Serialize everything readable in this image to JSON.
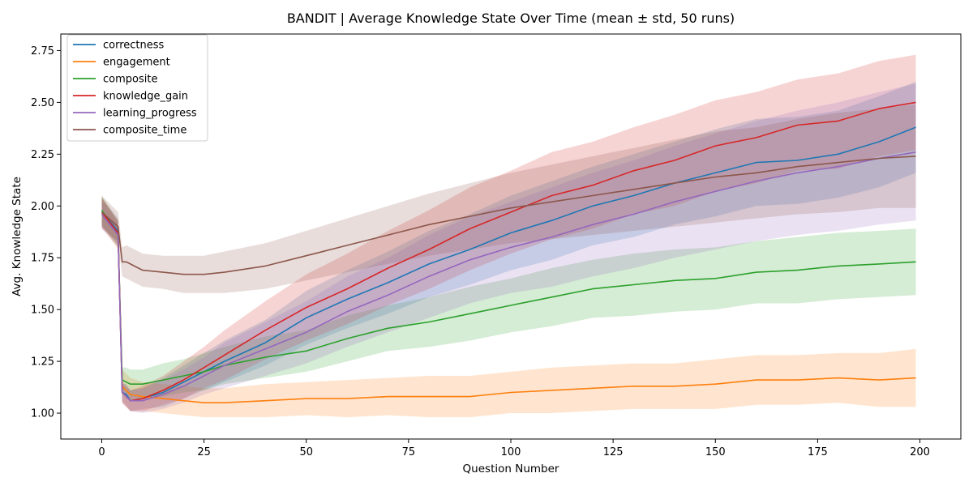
{
  "chart_data": {
    "type": "line",
    "title": "BANDIT | Average Knowledge State Over Time (mean ± std, 50 runs)",
    "xlabel": "Question Number",
    "ylabel": "Avg. Knowledge State",
    "xlim": [
      -10,
      210
    ],
    "ylim": [
      0.875,
      2.83
    ],
    "xticks": [
      0,
      25,
      50,
      75,
      100,
      125,
      150,
      175,
      200
    ],
    "yticks": [
      1.0,
      1.25,
      1.5,
      1.75,
      2.0,
      2.25,
      2.5,
      2.75
    ],
    "ytick_labels": [
      "1.00",
      "1.25",
      "1.50",
      "1.75",
      "2.00",
      "2.25",
      "2.50",
      "2.75"
    ],
    "grid": false,
    "legend_position": "top-left",
    "band": "mean ± std",
    "x": [
      0,
      4,
      5,
      6,
      7,
      10,
      15,
      20,
      25,
      30,
      40,
      50,
      60,
      70,
      80,
      90,
      100,
      110,
      120,
      130,
      140,
      150,
      160,
      170,
      180,
      190,
      199
    ],
    "series": [
      {
        "name": "correctness",
        "color": "#1f77b4",
        "values": [
          1.97,
          1.88,
          1.1,
          1.09,
          1.06,
          1.07,
          1.1,
          1.15,
          1.2,
          1.25,
          1.34,
          1.46,
          1.55,
          1.63,
          1.72,
          1.79,
          1.87,
          1.93,
          2.0,
          2.05,
          2.11,
          2.16,
          2.21,
          2.22,
          2.25,
          2.31,
          2.38
        ],
        "std": [
          0.07,
          0.06,
          0.04,
          0.05,
          0.05,
          0.05,
          0.07,
          0.08,
          0.09,
          0.1,
          0.11,
          0.13,
          0.14,
          0.15,
          0.16,
          0.17,
          0.18,
          0.19,
          0.19,
          0.2,
          0.2,
          0.21,
          0.21,
          0.21,
          0.21,
          0.22,
          0.22
        ]
      },
      {
        "name": "engagement",
        "color": "#ff7f0e",
        "values": [
          1.97,
          1.86,
          1.13,
          1.11,
          1.09,
          1.08,
          1.07,
          1.06,
          1.05,
          1.05,
          1.06,
          1.07,
          1.07,
          1.08,
          1.08,
          1.08,
          1.1,
          1.11,
          1.12,
          1.13,
          1.13,
          1.14,
          1.16,
          1.16,
          1.17,
          1.16,
          1.17
        ],
        "std": [
          0.07,
          0.07,
          0.08,
          0.08,
          0.08,
          0.07,
          0.07,
          0.07,
          0.07,
          0.07,
          0.08,
          0.08,
          0.09,
          0.09,
          0.1,
          0.1,
          0.1,
          0.11,
          0.11,
          0.11,
          0.11,
          0.12,
          0.12,
          0.12,
          0.12,
          0.13,
          0.14
        ]
      },
      {
        "name": "composite",
        "color": "#2ca02c",
        "values": [
          1.98,
          1.86,
          1.16,
          1.15,
          1.14,
          1.14,
          1.16,
          1.18,
          1.2,
          1.23,
          1.27,
          1.3,
          1.36,
          1.41,
          1.44,
          1.48,
          1.52,
          1.56,
          1.6,
          1.62,
          1.64,
          1.65,
          1.68,
          1.69,
          1.71,
          1.72,
          1.73
        ],
        "std": [
          0.07,
          0.06,
          0.06,
          0.07,
          0.07,
          0.07,
          0.08,
          0.08,
          0.09,
          0.09,
          0.1,
          0.1,
          0.11,
          0.11,
          0.12,
          0.13,
          0.13,
          0.14,
          0.14,
          0.15,
          0.15,
          0.15,
          0.15,
          0.16,
          0.16,
          0.16,
          0.16
        ]
      },
      {
        "name": "knowledge_gain",
        "color": "#d62728",
        "values": [
          1.97,
          1.87,
          1.1,
          1.08,
          1.06,
          1.07,
          1.11,
          1.16,
          1.22,
          1.28,
          1.4,
          1.51,
          1.6,
          1.7,
          1.79,
          1.89,
          1.97,
          2.05,
          2.1,
          2.17,
          2.22,
          2.29,
          2.33,
          2.39,
          2.41,
          2.47,
          2.5
        ],
        "std": [
          0.07,
          0.06,
          0.05,
          0.05,
          0.05,
          0.06,
          0.07,
          0.09,
          0.1,
          0.12,
          0.14,
          0.16,
          0.17,
          0.18,
          0.19,
          0.2,
          0.2,
          0.21,
          0.21,
          0.21,
          0.22,
          0.22,
          0.22,
          0.22,
          0.23,
          0.23,
          0.23
        ]
      },
      {
        "name": "learning_progress",
        "color": "#9467bd",
        "values": [
          1.96,
          1.86,
          1.1,
          1.08,
          1.06,
          1.06,
          1.09,
          1.13,
          1.18,
          1.23,
          1.31,
          1.39,
          1.49,
          1.57,
          1.66,
          1.74,
          1.8,
          1.85,
          1.91,
          1.96,
          2.02,
          2.07,
          2.12,
          2.16,
          2.19,
          2.23,
          2.26
        ],
        "std": [
          0.07,
          0.06,
          0.05,
          0.05,
          0.05,
          0.06,
          0.07,
          0.08,
          0.09,
          0.11,
          0.13,
          0.15,
          0.17,
          0.18,
          0.2,
          0.21,
          0.22,
          0.24,
          0.25,
          0.26,
          0.27,
          0.28,
          0.29,
          0.3,
          0.31,
          0.32,
          0.33
        ]
      },
      {
        "name": "composite_time",
        "color": "#8c564b",
        "values": [
          1.97,
          1.9,
          1.73,
          1.73,
          1.72,
          1.69,
          1.68,
          1.67,
          1.67,
          1.68,
          1.71,
          1.76,
          1.81,
          1.86,
          1.91,
          1.95,
          1.99,
          2.02,
          2.05,
          2.08,
          2.11,
          2.14,
          2.16,
          2.19,
          2.21,
          2.23,
          2.24
        ],
        "std": [
          0.08,
          0.07,
          0.07,
          0.08,
          0.08,
          0.08,
          0.08,
          0.09,
          0.09,
          0.1,
          0.11,
          0.12,
          0.13,
          0.14,
          0.15,
          0.16,
          0.17,
          0.18,
          0.19,
          0.2,
          0.21,
          0.22,
          0.22,
          0.23,
          0.24,
          0.24,
          0.25
        ]
      }
    ]
  }
}
